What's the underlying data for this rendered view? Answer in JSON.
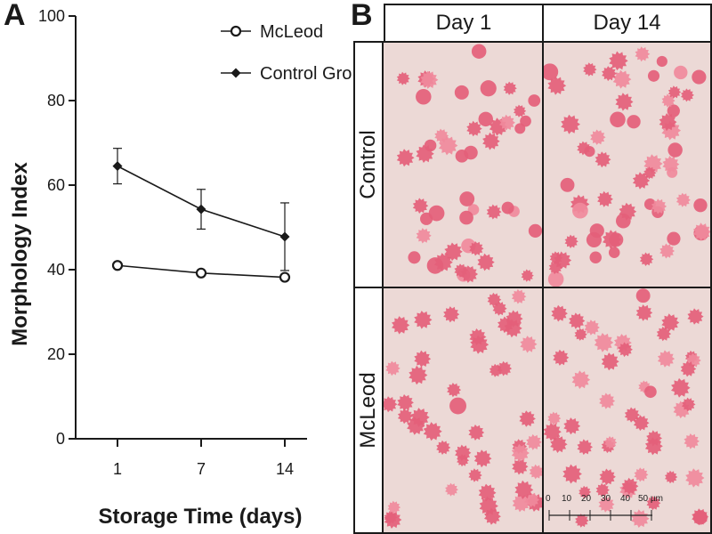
{
  "panel_a": {
    "label": "A"
  },
  "panel_b": {
    "label": "B",
    "columns": [
      "Day 1",
      "Day 14"
    ],
    "rows": [
      "Control",
      "McLeod"
    ],
    "scale_bar": {
      "ticks": [
        "0",
        "10",
        "20",
        "30",
        "40",
        "50 µm"
      ]
    }
  },
  "colors": {
    "line": "#1a1a1a",
    "rbc": "#e4607a",
    "rbc_light": "#f08a9c",
    "background": "#ecd9d6"
  },
  "chart_data": {
    "type": "line",
    "title": "",
    "xlabel": "Storage Time (days)",
    "ylabel": "Morphology Index",
    "categories": [
      "1",
      "7",
      "14"
    ],
    "ylim": [
      0,
      100
    ],
    "yticks": [
      0,
      20,
      40,
      60,
      80,
      100
    ],
    "grid": false,
    "legend_position": "top-right",
    "series": [
      {
        "name": "McLeod",
        "marker": "open-circle",
        "values": [
          41,
          39.2,
          38.2
        ],
        "errors": [
          0,
          0,
          0
        ]
      },
      {
        "name": "Control Group",
        "marker": "filled-diamond",
        "values": [
          64.5,
          54.3,
          47.8
        ],
        "errors": [
          4.2,
          4.7,
          8
        ]
      }
    ]
  }
}
